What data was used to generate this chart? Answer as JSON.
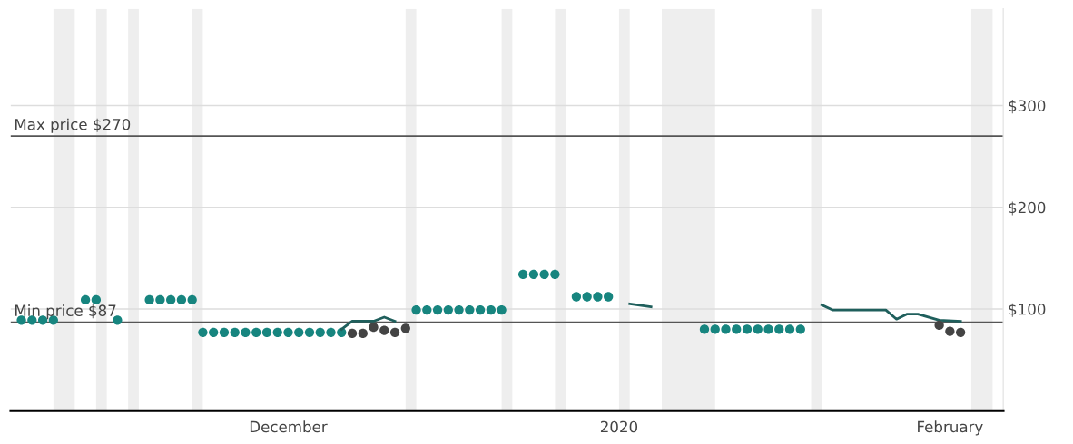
{
  "chart_data": {
    "type": "scatter",
    "xlim": [
      "2019-11-05",
      "2020-02-06"
    ],
    "xticks": [
      {
        "value": "2019-12-01",
        "label": "December"
      },
      {
        "value": "2020-01-01",
        "label": "2020"
      },
      {
        "value": "2020-02-01",
        "label": "February"
      }
    ],
    "ylim": [
      0,
      395
    ],
    "yticks": [
      {
        "value": 100,
        "label": "$100"
      },
      {
        "value": 200,
        "label": "$200"
      },
      {
        "value": 300,
        "label": "$300"
      }
    ],
    "grid": "y",
    "legend": false,
    "series": [
      {
        "marker": "circle",
        "color": "#17857f",
        "x": [
          "2019-11-06",
          "2019-11-07",
          "2019-11-08",
          "2019-11-09",
          "2019-11-12",
          "2019-11-13",
          "2019-11-15",
          "2019-11-18",
          "2019-11-19",
          "2019-11-20",
          "2019-11-21",
          "2019-11-22",
          "2019-11-23",
          "2019-11-24",
          "2019-11-25",
          "2019-11-26",
          "2019-11-27",
          "2019-11-28",
          "2019-11-29",
          "2019-11-30",
          "2019-12-01",
          "2019-12-02",
          "2019-12-03",
          "2019-12-04",
          "2019-12-05",
          "2019-12-06",
          "2019-12-13",
          "2019-12-14",
          "2019-12-15",
          "2019-12-16",
          "2019-12-17",
          "2019-12-18",
          "2019-12-19",
          "2019-12-20",
          "2019-12-21",
          "2019-12-23",
          "2019-12-24",
          "2019-12-25",
          "2019-12-26",
          "2019-12-28",
          "2019-12-29",
          "2019-12-30",
          "2019-12-31",
          "2020-01-09",
          "2020-01-10",
          "2020-01-11",
          "2020-01-12",
          "2020-01-13",
          "2020-01-14",
          "2020-01-15",
          "2020-01-16",
          "2020-01-17",
          "2020-01-18"
        ],
        "values": [
          89,
          89,
          89,
          89,
          109,
          109,
          89,
          109,
          109,
          109,
          109,
          109,
          77,
          77,
          77,
          77,
          77,
          77,
          77,
          77,
          77,
          77,
          77,
          77,
          77,
          77,
          99,
          99,
          99,
          99,
          99,
          99,
          99,
          99,
          99,
          134,
          134,
          134,
          134,
          112,
          112,
          112,
          112,
          80,
          80,
          80,
          80,
          80,
          80,
          80,
          80,
          80,
          80
        ]
      },
      {
        "type": "line",
        "marker": "none",
        "line_style": "solid",
        "color": "#1f5f5c",
        "x": [
          "2019-12-06",
          "2019-12-07",
          "2019-12-09",
          "2019-12-10",
          "2019-12-11",
          "2019-12-12",
          "2020-01-02",
          "2020-01-04",
          "2020-01-05",
          "2020-01-20",
          "2020-01-21",
          "2020-01-23",
          "2020-01-26",
          "2020-01-27",
          "2020-01-28",
          "2020-01-29",
          "2020-01-31",
          "2020-02-02"
        ],
        "values": [
          80,
          88,
          88,
          92,
          88,
          null,
          105,
          102,
          null,
          104,
          99,
          99,
          99,
          90,
          95,
          95,
          89,
          88
        ]
      },
      {
        "marker": "circle",
        "color": "#444444",
        "x": [
          "2019-12-07",
          "2019-12-08",
          "2019-12-09",
          "2019-12-10",
          "2019-12-11",
          "2019-12-12",
          "2020-01-31",
          "2020-02-01",
          "2020-02-02"
        ],
        "values": [
          76,
          76,
          82,
          79,
          77,
          81,
          84,
          78,
          77
        ]
      }
    ],
    "ref_lines": [
      {
        "axis": "y",
        "value": 270,
        "label": "Max price $270",
        "color": "#555555",
        "line_style": "solid"
      },
      {
        "axis": "y",
        "value": 87,
        "label": "Min price $87",
        "color": "#555555",
        "line_style": "solid"
      }
    ],
    "bands": [
      {
        "axis": "x",
        "from": "2019-11-09",
        "to": "2019-11-11",
        "color": "#eeeeee"
      },
      {
        "axis": "x",
        "from": "2019-11-13",
        "to": "2019-11-14",
        "color": "#eeeeee"
      },
      {
        "axis": "x",
        "from": "2019-11-16",
        "to": "2019-11-17",
        "color": "#eeeeee"
      },
      {
        "axis": "x",
        "from": "2019-11-22",
        "to": "2019-11-23",
        "color": "#eeeeee"
      },
      {
        "axis": "x",
        "from": "2019-12-12",
        "to": "2019-12-13",
        "color": "#eeeeee"
      },
      {
        "axis": "x",
        "from": "2019-12-21",
        "to": "2019-12-22",
        "color": "#eeeeee"
      },
      {
        "axis": "x",
        "from": "2019-12-26",
        "to": "2019-12-27",
        "color": "#eeeeee"
      },
      {
        "axis": "x",
        "from": "2020-01-01",
        "to": "2020-01-02",
        "color": "#eeeeee"
      },
      {
        "axis": "x",
        "from": "2020-01-05",
        "to": "2020-01-10",
        "color": "#eeeeee"
      },
      {
        "axis": "x",
        "from": "2020-01-19",
        "to": "2020-01-20",
        "color": "#eeeeee"
      },
      {
        "axis": "x",
        "from": "2020-02-03",
        "to": "2020-02-05",
        "color": "#eeeeee"
      }
    ]
  }
}
